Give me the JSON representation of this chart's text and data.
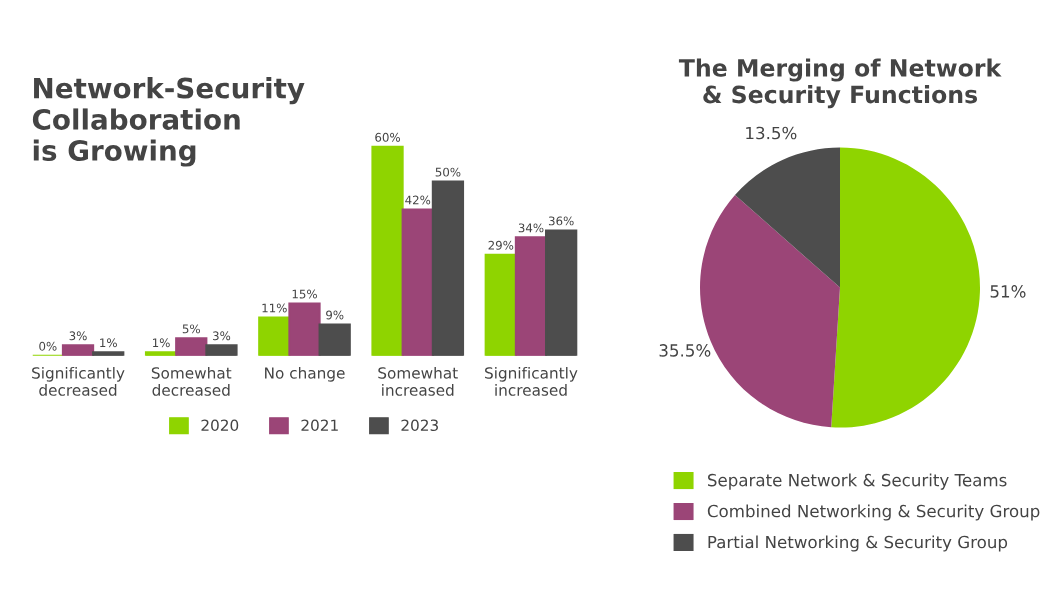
{
  "chart_data": [
    {
      "type": "bar",
      "title": "Network-Security\nCollaboration\nis Growing",
      "categories": [
        "Significantly\ndecreased",
        "Somewhat\ndecreased",
        "No change",
        "Somewhat\nincreased",
        "Significantly\nincreased"
      ],
      "series": [
        {
          "name": "2020",
          "color": "#8fd400",
          "values": [
            0,
            1,
            11,
            60,
            29
          ],
          "value_labels": [
            "0%",
            "1%",
            "11%",
            "60%",
            "29%"
          ]
        },
        {
          "name": "2021",
          "color": "#9b4577",
          "values": [
            3,
            5,
            15,
            42,
            34
          ],
          "value_labels": [
            "3%",
            "5%",
            "15%",
            "42%",
            "34%"
          ]
        },
        {
          "name": "2023",
          "color": "#4d4d4d",
          "values": [
            1,
            3,
            9,
            50,
            36
          ],
          "value_labels": [
            "1%",
            "3%",
            "9%",
            "50%",
            "36%"
          ]
        }
      ],
      "legend": "bottom",
      "tick_labels": "x"
    },
    {
      "type": "pie",
      "title": "The Merging of Network\n& Security Functions",
      "categories": [
        "Separate Network & Security Teams",
        "Combined Networking & Security Group",
        "Partial Networking & Security Group"
      ],
      "values": [
        51,
        35.5,
        13.5
      ],
      "value_labels": [
        "51%",
        "35.5%",
        "13.5%"
      ],
      "colors": [
        "#8fd400",
        "#9b4577",
        "#4d4d4d"
      ],
      "legend": "bottom"
    }
  ]
}
